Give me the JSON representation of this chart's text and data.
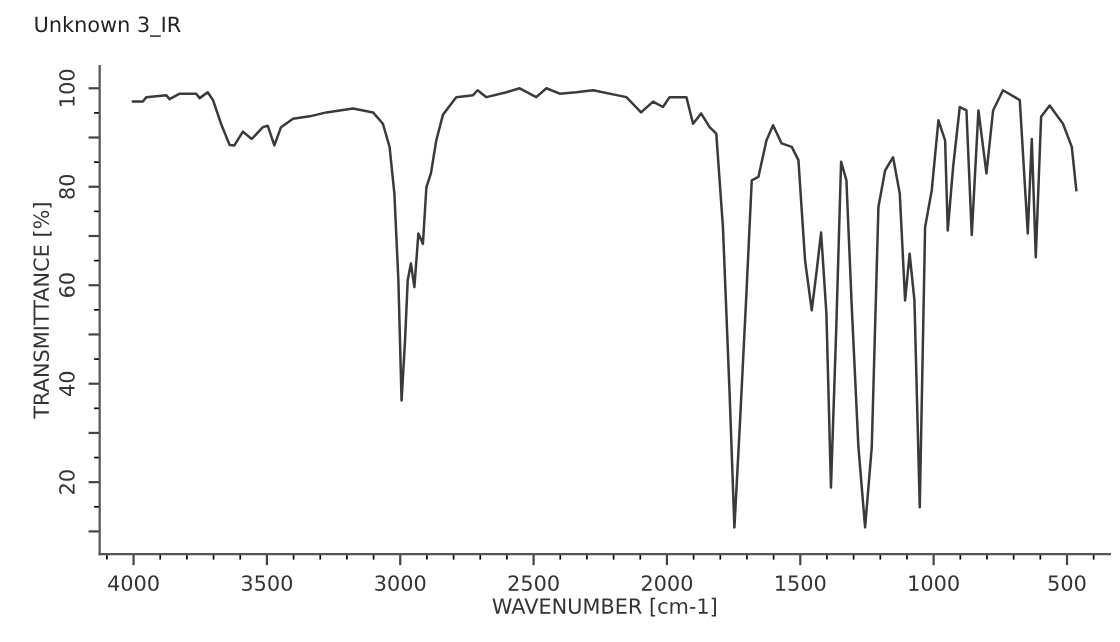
{
  "chart_data": {
    "type": "line",
    "title": "Unknown 3_IR",
    "xlabel": "WAVENUMBER [cm-1]",
    "ylabel": "TRANSMITTANCE [%]",
    "xlim": [
      4127,
      339
    ],
    "ylim": [
      5.4,
      104.5
    ],
    "xticks": [
      4000,
      3500,
      3000,
      2500,
      2000,
      1500,
      1000,
      500
    ],
    "yticks": [
      {
        "value": 10,
        "label": null
      },
      20,
      {
        "value": 30,
        "label": null
      },
      40,
      {
        "value": 50,
        "label": null
      },
      60,
      {
        "value": 70,
        "label": null
      },
      80,
      {
        "value": 90,
        "label": null
      },
      100
    ],
    "grid": false,
    "marker": "none",
    "line_style": "solid",
    "series": [
      {
        "color": "#3a3a3a",
        "x": [
          4002,
          3965,
          3952,
          3877,
          3865,
          3827,
          3765,
          3752,
          3722,
          3702,
          3672,
          3640,
          3622,
          3590,
          3557,
          3515,
          3497,
          3472,
          3447,
          3402,
          3340,
          3277,
          3177,
          3102,
          3065,
          3040,
          3022,
          3007,
          2995,
          2982,
          2972,
          2960,
          2947,
          2932,
          2915,
          2902,
          2885,
          2865,
          2840,
          2790,
          2727,
          2710,
          2677,
          2602,
          2552,
          2490,
          2452,
          2402,
          2340,
          2277,
          2152,
          2097,
          2052,
          2015,
          1990,
          1927,
          1902,
          1872,
          1840,
          1815,
          1790,
          1765,
          1747,
          1727,
          1702,
          1682,
          1657,
          1627,
          1602,
          1570,
          1532,
          1507,
          1482,
          1457,
          1440,
          1422,
          1402,
          1385,
          1365,
          1347,
          1327,
          1307,
          1282,
          1257,
          1232,
          1207,
          1182,
          1152,
          1127,
          1107,
          1090,
          1072,
          1052,
          1032,
          1007,
          982,
          957,
          947,
          927,
          902,
          877,
          857,
          832,
          802,
          777,
          740,
          677,
          647,
          632,
          617,
          597,
          565,
          515,
          482,
          465
        ],
        "values": [
          97.3,
          97.3,
          98.2,
          98.6,
          97.8,
          98.9,
          98.9,
          98.0,
          99.2,
          97.6,
          92.8,
          88.5,
          88.4,
          91.2,
          89.7,
          92.1,
          92.4,
          88.4,
          92.1,
          93.8,
          94.3,
          95.1,
          95.9,
          95.1,
          92.8,
          88.1,
          78.6,
          61.0,
          36.6,
          48.8,
          61.0,
          64.4,
          59.6,
          70.5,
          68.4,
          79.9,
          82.7,
          89.4,
          94.6,
          98.2,
          98.6,
          99.6,
          98.2,
          99.2,
          100.0,
          98.2,
          100.0,
          98.9,
          99.2,
          99.6,
          98.2,
          95.1,
          97.3,
          96.2,
          98.2,
          98.2,
          92.8,
          94.9,
          92.1,
          90.8,
          71.8,
          37.9,
          10.8,
          31.2,
          58.3,
          81.3,
          82.0,
          89.4,
          92.5,
          88.8,
          88.1,
          85.4,
          65.0,
          54.9,
          62.3,
          70.7,
          54.2,
          18.9,
          51.5,
          85.1,
          81.3,
          55.6,
          27.1,
          10.8,
          27.1,
          75.9,
          83.3,
          86.0,
          78.6,
          56.9,
          66.4,
          56.9,
          14.9,
          71.8,
          79.3,
          93.5,
          89.4,
          71.1,
          84.0,
          96.2,
          95.5,
          70.2,
          95.5,
          82.7,
          95.5,
          99.6,
          97.6,
          70.5,
          89.7,
          65.7,
          94.2,
          96.5,
          92.8,
          88.1,
          79.3
        ]
      }
    ]
  }
}
